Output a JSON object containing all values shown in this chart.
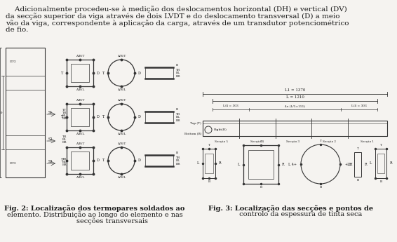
{
  "bg_color": "#f5f3f0",
  "text_color": "#1a1a1a",
  "paragraph_lines": [
    "    Adicionalmente procedeu-se à medição dos deslocamentos horizontal (DH) e vertical (DV)",
    "da secção superior da viga através de dois LVDT e do deslocamento transversal (D) a meio",
    "vão da viga, correspondente à aplicação da carga, através de um transdutor potenciométrico",
    "de fio."
  ],
  "fig2_caption_lines": [
    "Fig. 2: Localização dos termopares soldados ao",
    "elemento. Distribuição ao longo do elemento e nas",
    "                secções transversais"
  ],
  "fig3_caption_lines": [
    "Fig. 3: Localização das secções e pontos de",
    "         controlo da espessura de tinta seca"
  ],
  "font_size_para": 7.5,
  "font_size_cap": 7.0,
  "font_size_tiny": 4.0,
  "font_size_small": 4.5,
  "lc": "#333333"
}
